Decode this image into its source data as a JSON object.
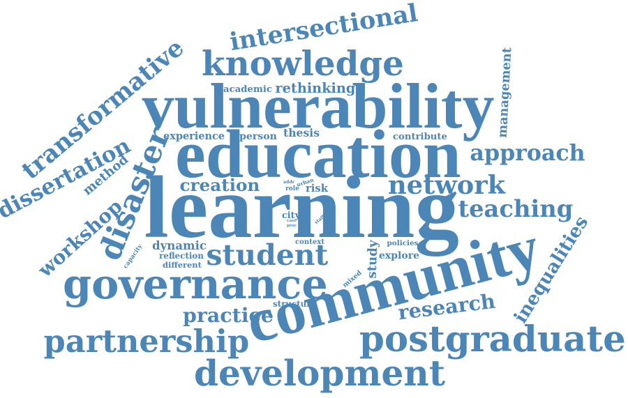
{
  "word_color": "#4b86b6",
  "background_color": "#ffffff",
  "words": [
    {
      "text": "learning",
      "weight": 100
    },
    {
      "text": "education",
      "weight": 80
    },
    {
      "text": "vulnerability",
      "weight": 78
    },
    {
      "text": "community",
      "weight": 74
    },
    {
      "text": "knowledge",
      "weight": 48
    },
    {
      "text": "postgraduate",
      "weight": 48
    },
    {
      "text": "development",
      "weight": 48
    },
    {
      "text": "governance",
      "weight": 48
    },
    {
      "text": "student",
      "weight": 46
    },
    {
      "text": "disaster",
      "weight": 42
    },
    {
      "text": "partnership",
      "weight": 40
    },
    {
      "text": "transformative",
      "weight": 36
    },
    {
      "text": "dissertation",
      "weight": 36
    },
    {
      "text": "intersectional",
      "weight": 34
    },
    {
      "text": "network",
      "weight": 30
    },
    {
      "text": "approach",
      "weight": 30
    },
    {
      "text": "practice",
      "weight": 30
    },
    {
      "text": "teaching",
      "weight": 28
    },
    {
      "text": "creation",
      "weight": 28
    },
    {
      "text": "research",
      "weight": 26
    },
    {
      "text": "inequalities",
      "weight": 26
    },
    {
      "text": "workshop",
      "weight": 20
    },
    {
      "text": "method",
      "weight": 20
    },
    {
      "text": "study",
      "weight": 16
    },
    {
      "text": "thesis",
      "weight": 16
    },
    {
      "text": "rethinking",
      "weight": 14
    },
    {
      "text": "management",
      "weight": 13
    },
    {
      "text": "experience",
      "weight": 12
    },
    {
      "text": "person",
      "weight": 12
    },
    {
      "text": "contribute",
      "weight": 12
    },
    {
      "text": "dynamic",
      "weight": 12
    },
    {
      "text": "explore",
      "weight": 12
    },
    {
      "text": "risk",
      "weight": 12
    },
    {
      "text": "city",
      "weight": 11
    },
    {
      "text": "academic",
      "weight": 10
    },
    {
      "text": "reflection",
      "weight": 10
    },
    {
      "text": "structure",
      "weight": 10
    },
    {
      "text": "different",
      "weight": 9
    },
    {
      "text": "context",
      "weight": 9
    },
    {
      "text": "policies",
      "weight": 9
    },
    {
      "text": "capacity",
      "weight": 8
    },
    {
      "text": "mixed",
      "weight": 8
    },
    {
      "text": "role",
      "weight": 8
    },
    {
      "text": "urban",
      "weight": 7
    },
    {
      "text": "addr",
      "weight": 6
    },
    {
      "text": "case",
      "weight": 6
    },
    {
      "text": "proc",
      "weight": 6
    },
    {
      "text": "staff",
      "weight": 6
    }
  ]
}
